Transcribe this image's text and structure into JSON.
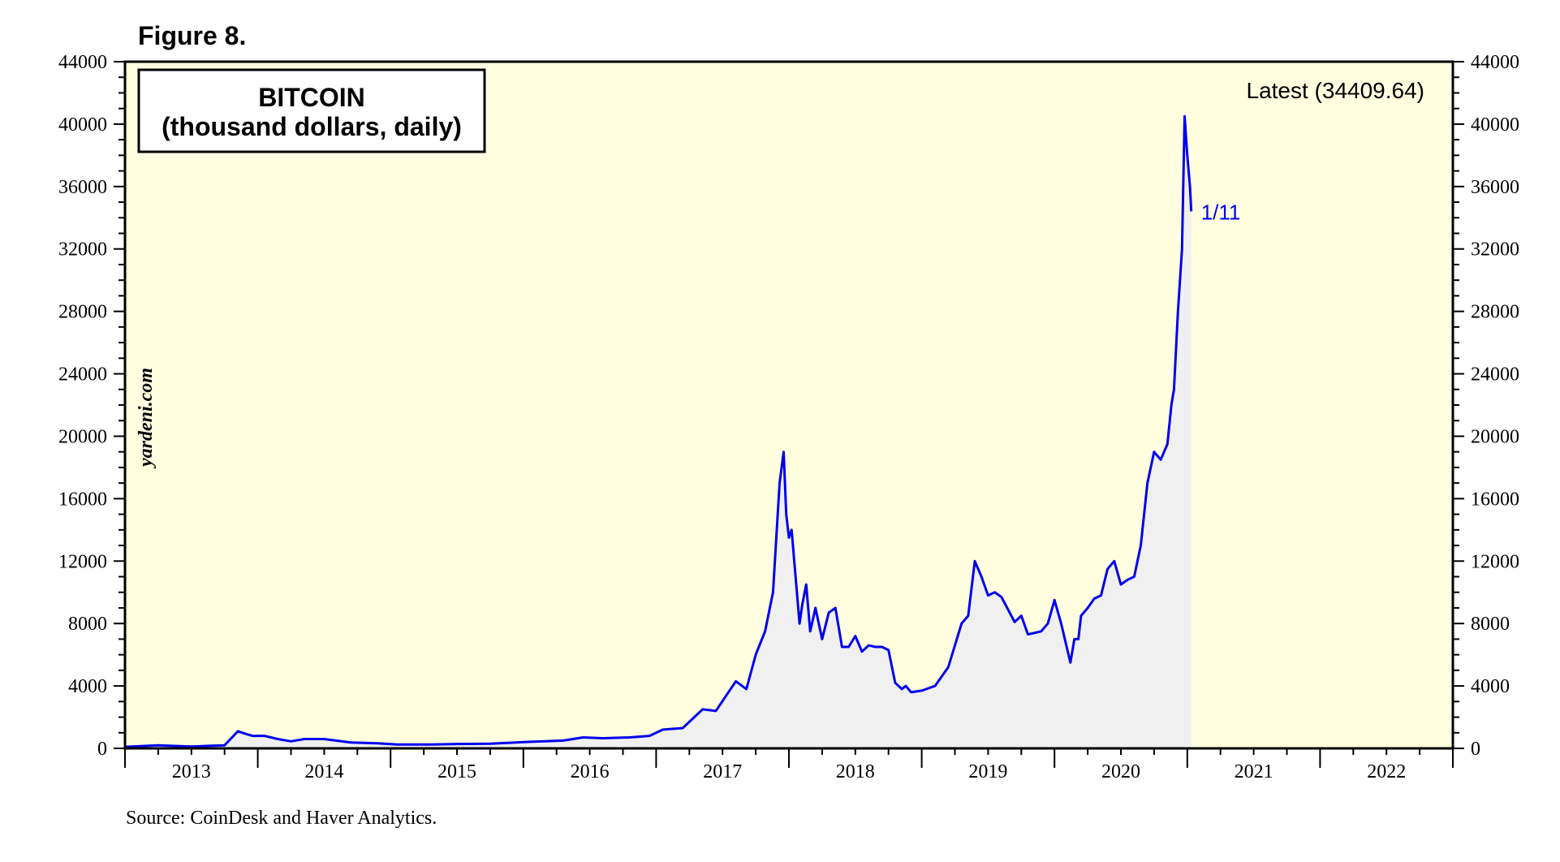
{
  "figure_label": "Figure 8.",
  "watermark": "yardeni.com",
  "source": "Source: CoinDesk and Haver Analytics.",
  "latest_label": "Latest (34409.64)",
  "latest_date_label": "1/11",
  "colors": {
    "plot_background": "#ffffe0",
    "line": "#0000ee",
    "area_fill": "#f0f0f0",
    "axis": "#000000"
  },
  "chart_data": {
    "type": "line",
    "title": "BITCOIN",
    "subtitle": "(thousand dollars, daily)",
    "xlabel": "",
    "ylabel": "",
    "x_ticks": [
      "2013",
      "2014",
      "2015",
      "2016",
      "2017",
      "2018",
      "2019",
      "2020",
      "2021",
      "2022"
    ],
    "xlim": [
      2013.0,
      2023.0
    ],
    "ylim": [
      0,
      44000
    ],
    "y_ticks": [
      0,
      4000,
      8000,
      12000,
      16000,
      20000,
      24000,
      28000,
      32000,
      36000,
      40000,
      44000
    ],
    "y_ticks_both_sides": true,
    "area_under_line": true,
    "series": [
      {
        "x": [
          2013.0,
          2013.25,
          2013.5,
          2013.75,
          2013.85,
          2013.92,
          2013.96,
          2014.05,
          2014.15,
          2014.25,
          2014.35,
          2014.5,
          2014.7,
          2014.9,
          2015.05,
          2015.3,
          2015.5,
          2015.75,
          2016.0,
          2016.3,
          2016.45,
          2016.6,
          2016.8,
          2016.95,
          2017.05,
          2017.2,
          2017.35,
          2017.45,
          2017.6,
          2017.68,
          2017.75,
          2017.82,
          2017.88,
          2017.93,
          2017.96,
          2017.98,
          2018.0,
          2018.02,
          2018.05,
          2018.08,
          2018.1,
          2018.13,
          2018.16,
          2018.2,
          2018.25,
          2018.3,
          2018.35,
          2018.4,
          2018.45,
          2018.5,
          2018.55,
          2018.6,
          2018.65,
          2018.7,
          2018.75,
          2018.8,
          2018.85,
          2018.88,
          2018.92,
          2019.0,
          2019.1,
          2019.2,
          2019.3,
          2019.35,
          2019.4,
          2019.45,
          2019.5,
          2019.55,
          2019.6,
          2019.7,
          2019.75,
          2019.8,
          2019.9,
          2019.95,
          2020.0,
          2020.05,
          2020.12,
          2020.15,
          2020.18,
          2020.2,
          2020.25,
          2020.3,
          2020.35,
          2020.4,
          2020.45,
          2020.5,
          2020.55,
          2020.6,
          2020.65,
          2020.7,
          2020.75,
          2020.8,
          2020.85,
          2020.88,
          2020.9,
          2020.93,
          2020.96,
          2020.98,
          2021.0,
          2021.02,
          2021.03
        ],
        "y": [
          100,
          200,
          120,
          200,
          1100,
          900,
          800,
          800,
          600,
          450,
          600,
          600,
          380,
          320,
          250,
          250,
          280,
          300,
          400,
          500,
          700,
          650,
          700,
          800,
          1200,
          1300,
          2500,
          2400,
          4300,
          3800,
          6000,
          7500,
          10000,
          17000,
          19000,
          15000,
          13500,
          14000,
          11000,
          8000,
          9200,
          10500,
          7500,
          9000,
          7000,
          8700,
          9000,
          6500,
          6500,
          7200,
          6200,
          6600,
          6500,
          6500,
          6300,
          4200,
          3800,
          4000,
          3600,
          3700,
          4000,
          5200,
          8000,
          8500,
          12000,
          11000,
          9800,
          10000,
          9700,
          8100,
          8500,
          7300,
          7500,
          8000,
          9500,
          8000,
          5500,
          7000,
          7000,
          8500,
          9000,
          9600,
          9800,
          11500,
          12000,
          10500,
          10800,
          11000,
          13000,
          17000,
          19000,
          18500,
          19500,
          22000,
          23000,
          28000,
          32000,
          40500,
          38000,
          36000,
          34409.64
        ]
      }
    ]
  }
}
